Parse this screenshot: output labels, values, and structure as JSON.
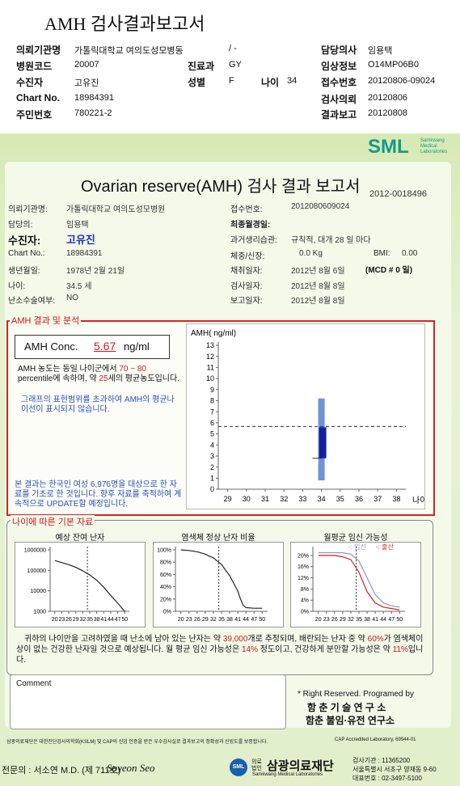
{
  "header": {
    "title": "AMH 검사결과보고서",
    "fields": {
      "institution": {
        "label": "의뢰기관명",
        "value": "가톨릭대학교 여의도성모병동"
      },
      "institution_suffix": "/ -",
      "doctor": {
        "label": "담당의사",
        "value": "임용택"
      },
      "hospital_code": {
        "label": "병원코드",
        "value": "20007"
      },
      "department": {
        "label": "진료과",
        "value": "GY"
      },
      "clinical_info": {
        "label": "임상정보",
        "value": "O14MP06B0"
      },
      "patient": {
        "label": "수진자",
        "value": "고유진"
      },
      "sex": {
        "label": "성별",
        "value": "F"
      },
      "age": {
        "label": "나이",
        "value": "34"
      },
      "receipt_no": {
        "label": "접수번호",
        "value": "20120806-09024"
      },
      "chart_no": {
        "label": "Chart No.",
        "value": "18984391"
      },
      "request_date": {
        "label": "검사의뢰",
        "value": "20120806"
      },
      "resident_no": {
        "label": "주민번호",
        "value": "780221-2"
      },
      "report_date": {
        "label": "결과보고",
        "value": "20120808"
      }
    }
  },
  "report": {
    "logo": {
      "mark": "SML",
      "line1": "Samkwang",
      "line2": "Medical",
      "line3": "Laboratories"
    },
    "title": "Ovarian reserve(AMH) 검사 결과 보고서",
    "number": "2012-0018496",
    "info_left": [
      {
        "label": "의뢰기관명:",
        "value": "가톨릭대학교 여의도성모병원"
      },
      {
        "label": "담당의:",
        "value": "임용택"
      },
      {
        "label": "수진자:",
        "value": "고유진"
      },
      {
        "label": "Chart No.:",
        "value": "18984391"
      },
      {
        "label": "생년월일:",
        "value": "1978년 2월 21일"
      },
      {
        "label": "나이:",
        "value": "34.5 세"
      },
      {
        "label": "난소수술여부:",
        "value": "NO"
      }
    ],
    "info_right": [
      {
        "label": "접수번호:",
        "value": "2012080609024"
      },
      {
        "label": "최종월경일:"
      },
      {
        "label": "과거생리습관:",
        "value": "규칙적, 대개  28 일 마다"
      },
      {
        "label": "체중/신장:",
        "value": "0.0 Kg",
        "extra_label": "BMI:",
        "extra_value": "0.00"
      },
      {
        "label": "채취일자:",
        "value": "2012년 8월 6일",
        "extra_value": "(MCD # 0 일)"
      },
      {
        "label": "검사일자:",
        "value": "2012년 8월 8일"
      },
      {
        "label": "보고일자:",
        "value": "2012년 8월 8일"
      }
    ],
    "analysis": {
      "heading": "AMH 결과 및 분석",
      "conc_label": "AMH Conc.",
      "conc_value": "5.67",
      "conc_unit": "ng/ml",
      "summary": [
        "AMH 농도는 동일 나이군에서 ",
        "70 ~ 80",
        " percentile에 속하며, 약 ",
        "25",
        "세의 평균농도입니다."
      ],
      "note": "그래프의 표현범위를 초과하여 AMH의 평균나이선이 표시되지 않습니다.",
      "source": "본 결과는 한국인 여성 6,976명을 대상으로 한 자료를 기초로 한 것입니다. 향후 자료를 축적하여 계속적으로 UPDATE할 예정입니다."
    },
    "basics_heading": "나이에 따른 기본 자료",
    "conclusion": [
      "귀하의 나이만을 고려하였을 때 난소에 남아 있는 난자는 약 ",
      "39,000",
      "개로 추정되며, 배란되는 난자 중 약 ",
      "60%",
      "가 염색체이상이 없는 건강한 난자일 것으로 예상됩니다. 월 평균 임신 가능성은 ",
      "14%",
      " 정도이고, 건강하게 분만할 가능성은 약 ",
      "11%",
      "입니다."
    ],
    "comment_label": "Comment",
    "credit": {
      "line1": "* Right Reserved. Programed by",
      "line2": "함 춘 기 술 연 구 소",
      "line3": "함춘 불임·유전 연구소"
    },
    "certification": "삼광의료재단은 대한진단검사의학회(KSLM) 및 CAP의 신임 인증을 받은 우수검사실로 결과보고의 정확성과 신빙도를 보증합니다.",
    "cap": "CAP  Accredited  Laboratory,  69944-01",
    "specialist": "전문의 : 서소연 M.D. (제 711호)",
    "signature": "Soyeon Seo",
    "foundation": {
      "mark": "SML",
      "tag": "의료법인",
      "name": "삼광의료재단",
      "english": "Samkwang Medical Laboratories"
    },
    "contact": [
      "검사기관 : 11365200",
      "서울특별시 서초구 양재동 9-60",
      "대표번호 : 02-3497-5100"
    ]
  },
  "chart_data": [
    {
      "type": "range",
      "y_label": "AMH( ng/ml)",
      "x_label": "나이",
      "xlim": [
        28.5,
        38.5
      ],
      "xticks": [
        29,
        30,
        31,
        32,
        33,
        34,
        35,
        36,
        37,
        38
      ],
      "ylim": [
        0,
        13
      ],
      "yticks": [
        0,
        1,
        2,
        3,
        4,
        5,
        6,
        7,
        8,
        9,
        10,
        11,
        12,
        13
      ],
      "age": 34,
      "whisker": [
        0.8,
        8.2
      ],
      "box": [
        2.8,
        5.6
      ],
      "patient_value": 5.67,
      "whisker_color": "#6f93d4",
      "box_color": "#14209a"
    },
    {
      "type": "line",
      "title": "예상 잔여 난자",
      "log_y": true,
      "xlim": [
        18,
        52
      ],
      "xticks": [
        20,
        23,
        26,
        29,
        32,
        35,
        38,
        41,
        44,
        47,
        50
      ],
      "ylim": [
        1000,
        1000000
      ],
      "yticks": [
        1000,
        10000,
        100000,
        1000000
      ],
      "marker_age": 34,
      "x": [
        20,
        23,
        26,
        29,
        32,
        35,
        38,
        41,
        44,
        47,
        50
      ],
      "series": [
        {
          "color": "#222222",
          "values": [
            300000,
            240000,
            190000,
            140000,
            95000,
            60000,
            33000,
            15000,
            6000,
            2500,
            1000
          ]
        }
      ]
    },
    {
      "type": "line",
      "title": "염색체 정상 난자 비율",
      "xlim": [
        18,
        52
      ],
      "xticks": [
        20,
        23,
        26,
        29,
        32,
        35,
        38,
        41,
        44,
        47,
        50
      ],
      "ylim": [
        0,
        100
      ],
      "yticks": [
        {
          "value": 0,
          "label": "0%"
        },
        {
          "value": 20,
          "label": "20%"
        },
        {
          "value": 40,
          "label": "40%"
        },
        {
          "value": 60,
          "label": "60%"
        },
        {
          "value": 80,
          "label": "80%"
        },
        {
          "value": 100,
          "label": "100%"
        }
      ],
      "marker_age": 34,
      "x": [
        20,
        23,
        26,
        29,
        32,
        35,
        38,
        41,
        42,
        43,
        44,
        47,
        50
      ],
      "series": [
        {
          "color": "#222222",
          "values": [
            100,
            99,
            97,
            93,
            87,
            76,
            58,
            33,
            20,
            10,
            6,
            5,
            5
          ]
        }
      ]
    },
    {
      "type": "line",
      "title": "월평균 임신 가능성",
      "xlim": [
        18,
        52
      ],
      "xticks": [
        20,
        23,
        26,
        29,
        32,
        35,
        38,
        41,
        44,
        47,
        50
      ],
      "ylim": [
        0,
        22
      ],
      "yticks": [
        {
          "value": 0,
          "label": "0%"
        },
        {
          "value": 4,
          "label": "4%"
        },
        {
          "value": 8,
          "label": "8%"
        },
        {
          "value": 12,
          "label": "12%"
        },
        {
          "value": 16,
          "label": "16%"
        },
        {
          "value": 20,
          "label": "20%"
        }
      ],
      "marker_age": 34,
      "x": [
        20,
        23,
        26,
        29,
        32,
        35,
        38,
        41,
        44,
        47,
        50
      ],
      "series": [
        {
          "name": "-: 임신",
          "color": "#9a8fc8",
          "values": [
            21,
            21,
            21,
            21,
            20.5,
            18,
            12,
            6,
            3,
            2,
            1.5
          ]
        },
        {
          "name": "-: 출산",
          "color": "#d02020",
          "values": [
            20,
            20,
            20,
            19.5,
            18.5,
            14,
            7,
            3,
            1.5,
            1,
            0.5
          ]
        }
      ]
    }
  ]
}
